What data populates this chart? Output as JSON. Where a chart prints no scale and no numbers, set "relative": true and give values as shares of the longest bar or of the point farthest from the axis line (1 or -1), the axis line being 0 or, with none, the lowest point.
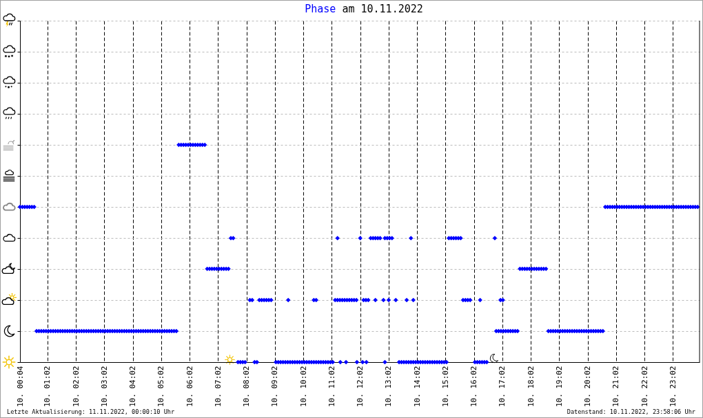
{
  "chart_data": {
    "type": "scatter",
    "title": "Phase am 10.11.2022",
    "annotations": [
      "Letzte Aktualisierung: 11.11.2022, 00:00:10 Uhr",
      "Datenstand: 10.11.2022, 23:58:06 Uhr"
    ],
    "color": "#0000ff",
    "marker": "diamond",
    "grid": true,
    "tick_labels": "x",
    "relative": true,
    "xlim": [
      "2022-11-10T00:04",
      "2022-11-10T23:58"
    ],
    "xticks": [
      {
        "value": "2022-11-10T00:04",
        "label": "10. 00:04"
      },
      {
        "value": "2022-11-10T01:02",
        "label": "10. 01:02"
      },
      {
        "value": "2022-11-10T02:02",
        "label": "10. 02:02"
      },
      {
        "value": "2022-11-10T03:02",
        "label": "10. 03:02"
      },
      {
        "value": "2022-11-10T04:02",
        "label": "10. 04:02"
      },
      {
        "value": "2022-11-10T05:02",
        "label": "10. 05:02"
      },
      {
        "value": "2022-11-10T06:02",
        "label": "10. 06:02"
      },
      {
        "value": "2022-11-10T07:02",
        "label": "10. 07:02"
      },
      {
        "value": "2022-11-10T08:02",
        "label": "10. 08:02"
      },
      {
        "value": "2022-11-10T09:02",
        "label": "10. 09:02"
      },
      {
        "value": "2022-11-10T10:02",
        "label": "10. 10:02"
      },
      {
        "value": "2022-11-10T11:02",
        "label": "10. 11:02"
      },
      {
        "value": "2022-11-10T12:02",
        "label": "10. 12:02"
      },
      {
        "value": "2022-11-10T13:02",
        "label": "10. 13:02"
      },
      {
        "value": "2022-11-10T14:02",
        "label": "10. 14:02"
      },
      {
        "value": "2022-11-10T15:02",
        "label": "10. 15:02"
      },
      {
        "value": "2022-11-10T16:02",
        "label": "10. 16:02"
      },
      {
        "value": "2022-11-10T17:02",
        "label": "10. 17:02"
      },
      {
        "value": "2022-11-10T18:02",
        "label": "10. 18:02"
      },
      {
        "value": "2022-11-10T19:02",
        "label": "10. 19:02"
      },
      {
        "value": "2022-11-10T20:02",
        "label": "10. 20:02"
      },
      {
        "value": "2022-11-10T21:02",
        "label": "10. 21:02"
      },
      {
        "value": "2022-11-10T22:02",
        "label": "10. 22:02"
      },
      {
        "value": "2022-11-10T23:02",
        "label": "10. 23:02"
      }
    ],
    "x": [
      "2022-11-10T00:04",
      "2022-11-10T00:09",
      "2022-11-10T00:14",
      "2022-11-10T00:19",
      "2022-11-10T00:24",
      "2022-11-10T00:29",
      "2022-11-10T00:34",
      "2022-11-10T00:39",
      "2022-11-10T00:44",
      "2022-11-10T00:49",
      "2022-11-10T00:54",
      "2022-11-10T00:59",
      "2022-11-10T01:04",
      "2022-11-10T01:09",
      "2022-11-10T01:14",
      "2022-11-10T01:19",
      "2022-11-10T01:24",
      "2022-11-10T01:29",
      "2022-11-10T01:34",
      "2022-11-10T01:39",
      "2022-11-10T01:44",
      "2022-11-10T01:49",
      "2022-11-10T01:54",
      "2022-11-10T01:59",
      "2022-11-10T02:04",
      "2022-11-10T02:09",
      "2022-11-10T02:14",
      "2022-11-10T02:19",
      "2022-11-10T02:24",
      "2022-11-10T02:29",
      "2022-11-10T02:34",
      "2022-11-10T02:39",
      "2022-11-10T02:44",
      "2022-11-10T02:49",
      "2022-11-10T02:54",
      "2022-11-10T02:59",
      "2022-11-10T03:04",
      "2022-11-10T03:09",
      "2022-11-10T03:14",
      "2022-11-10T03:19",
      "2022-11-10T03:24",
      "2022-11-10T03:29",
      "2022-11-10T03:34",
      "2022-11-10T03:39",
      "2022-11-10T03:44",
      "2022-11-10T03:49",
      "2022-11-10T03:54",
      "2022-11-10T03:59",
      "2022-11-10T04:04",
      "2022-11-10T04:09",
      "2022-11-10T04:14",
      "2022-11-10T04:19",
      "2022-11-10T04:24",
      "2022-11-10T04:29",
      "2022-11-10T04:34",
      "2022-11-10T04:39",
      "2022-11-10T04:44",
      "2022-11-10T04:49",
      "2022-11-10T04:54",
      "2022-11-10T04:59",
      "2022-11-10T05:04",
      "2022-11-10T05:09",
      "2022-11-10T05:14",
      "2022-11-10T05:19",
      "2022-11-10T05:24",
      "2022-11-10T05:29",
      "2022-11-10T05:34",
      "2022-11-10T05:39",
      "2022-11-10T05:44",
      "2022-11-10T05:49",
      "2022-11-10T05:54",
      "2022-11-10T05:59",
      "2022-11-10T06:04",
      "2022-11-10T06:09",
      "2022-11-10T06:14",
      "2022-11-10T06:19",
      "2022-11-10T06:24",
      "2022-11-10T06:29",
      "2022-11-10T06:34",
      "2022-11-10T06:39",
      "2022-11-10T06:44",
      "2022-11-10T06:49",
      "2022-11-10T06:54",
      "2022-11-10T06:59",
      "2022-11-10T07:04",
      "2022-11-10T07:09",
      "2022-11-10T07:14",
      "2022-11-10T07:19",
      "2022-11-10T07:24",
      "2022-11-10T07:29",
      "2022-11-10T07:34",
      "2022-11-10T07:44",
      "2022-11-10T07:49",
      "2022-11-10T07:54",
      "2022-11-10T07:59",
      "2022-11-10T08:09",
      "2022-11-10T08:14",
      "2022-11-10T08:19",
      "2022-11-10T08:24",
      "2022-11-10T08:29",
      "2022-11-10T08:34",
      "2022-11-10T08:39",
      "2022-11-10T08:44",
      "2022-11-10T08:49",
      "2022-11-10T08:54",
      "2022-11-10T09:04",
      "2022-11-10T09:09",
      "2022-11-10T09:14",
      "2022-11-10T09:19",
      "2022-11-10T09:24",
      "2022-11-10T09:29",
      "2022-11-10T09:34",
      "2022-11-10T09:39",
      "2022-11-10T09:44",
      "2022-11-10T09:49",
      "2022-11-10T09:54",
      "2022-11-10T09:59",
      "2022-11-10T10:04",
      "2022-11-10T10:09",
      "2022-11-10T10:14",
      "2022-11-10T10:19",
      "2022-11-10T10:24",
      "2022-11-10T10:29",
      "2022-11-10T10:34",
      "2022-11-10T10:39",
      "2022-11-10T10:44",
      "2022-11-10T10:49",
      "2022-11-10T10:54",
      "2022-11-10T10:59",
      "2022-11-10T11:04",
      "2022-11-10T09:30",
      "2022-11-10T10:24",
      "2022-11-10T10:29",
      "2022-11-10T11:09",
      "2022-11-10T11:14",
      "2022-11-10T11:19",
      "2022-11-10T11:24",
      "2022-11-10T11:29",
      "2022-11-10T11:34",
      "2022-11-10T11:39",
      "2022-11-10T11:44",
      "2022-11-10T11:49",
      "2022-11-10T11:54",
      "2022-11-10T11:20",
      "2022-11-10T11:32",
      "2022-11-10T11:55",
      "2022-11-10T12:07",
      "2022-11-10T12:15",
      "2022-11-10T12:54",
      "2022-11-10T11:14",
      "2022-11-10T12:02",
      "2022-11-10T12:09",
      "2022-11-10T12:14",
      "2022-11-10T12:19",
      "2022-11-10T12:34",
      "2022-11-10T12:24",
      "2022-11-10T12:29",
      "2022-11-10T12:34",
      "2022-11-10T12:39",
      "2022-11-10T12:44",
      "2022-11-10T12:54",
      "2022-11-10T12:59",
      "2022-11-10T13:04",
      "2022-11-10T13:09",
      "2022-11-10T12:51",
      "2022-11-10T13:02",
      "2022-11-10T13:17",
      "2022-11-10T13:40",
      "2022-11-10T13:54",
      "2022-11-10T13:49",
      "2022-11-10T13:24",
      "2022-11-10T13:29",
      "2022-11-10T13:34",
      "2022-11-10T13:39",
      "2022-11-10T13:44",
      "2022-11-10T13:49",
      "2022-11-10T13:54",
      "2022-11-10T13:59",
      "2022-11-10T14:04",
      "2022-11-10T14:09",
      "2022-11-10T14:14",
      "2022-11-10T14:19",
      "2022-11-10T14:24",
      "2022-11-10T14:29",
      "2022-11-10T14:34",
      "2022-11-10T14:39",
      "2022-11-10T14:44",
      "2022-11-10T14:49",
      "2022-11-10T14:54",
      "2022-11-10T14:59",
      "2022-11-10T15:04",
      "2022-11-10T15:09",
      "2022-11-10T15:14",
      "2022-11-10T15:19",
      "2022-11-10T15:24",
      "2022-11-10T15:29",
      "2022-11-10T15:34",
      "2022-11-10T15:39",
      "2022-11-10T15:44",
      "2022-11-10T15:49",
      "2022-11-10T15:54",
      "2022-11-10T16:04",
      "2022-11-10T16:09",
      "2022-11-10T16:14",
      "2022-11-10T16:19",
      "2022-11-10T16:24",
      "2022-11-10T16:29",
      "2022-11-10T16:15",
      "2022-11-10T16:58",
      "2022-11-10T17:03",
      "2022-11-10T16:46",
      "2022-11-10T16:49",
      "2022-11-10T16:54",
      "2022-11-10T16:59",
      "2022-11-10T17:04",
      "2022-11-10T17:09",
      "2022-11-10T17:14",
      "2022-11-10T17:19",
      "2022-11-10T17:24",
      "2022-11-10T17:29",
      "2022-11-10T17:34",
      "2022-11-10T17:39",
      "2022-11-10T17:44",
      "2022-11-10T17:49",
      "2022-11-10T17:54",
      "2022-11-10T17:59",
      "2022-11-10T18:04",
      "2022-11-10T18:09",
      "2022-11-10T18:14",
      "2022-11-10T18:19",
      "2022-11-10T18:24",
      "2022-11-10T18:29",
      "2022-11-10T18:34",
      "2022-11-10T18:39",
      "2022-11-10T18:44",
      "2022-11-10T18:49",
      "2022-11-10T18:54",
      "2022-11-10T18:59",
      "2022-11-10T19:04",
      "2022-11-10T19:09",
      "2022-11-10T19:14",
      "2022-11-10T19:19",
      "2022-11-10T19:24",
      "2022-11-10T19:29",
      "2022-11-10T19:34",
      "2022-11-10T19:39",
      "2022-11-10T19:44",
      "2022-11-10T19:49",
      "2022-11-10T19:54",
      "2022-11-10T19:59",
      "2022-11-10T20:04",
      "2022-11-10T20:09",
      "2022-11-10T20:14",
      "2022-11-10T20:19",
      "2022-11-10T20:24",
      "2022-11-10T20:29",
      "2022-11-10T20:34",
      "2022-11-10T20:39",
      "2022-11-10T20:44",
      "2022-11-10T20:49",
      "2022-11-10T20:54",
      "2022-11-10T20:59",
      "2022-11-10T21:04",
      "2022-11-10T21:09",
      "2022-11-10T21:14",
      "2022-11-10T21:19",
      "2022-11-10T21:24",
      "2022-11-10T21:29",
      "2022-11-10T21:34",
      "2022-11-10T21:39",
      "2022-11-10T21:44",
      "2022-11-10T21:49",
      "2022-11-10T21:54",
      "2022-11-10T21:59",
      "2022-11-10T22:04",
      "2022-11-10T22:09",
      "2022-11-10T22:14",
      "2022-11-10T22:19",
      "2022-11-10T22:24",
      "2022-11-10T22:29",
      "2022-11-10T22:34",
      "2022-11-10T22:39",
      "2022-11-10T22:44",
      "2022-11-10T22:49",
      "2022-11-10T22:54",
      "2022-11-10T22:59",
      "2022-11-10T23:04",
      "2022-11-10T23:09",
      "2022-11-10T23:14",
      "2022-11-10T23:19",
      "2022-11-10T23:24",
      "2022-11-10T23:29",
      "2022-11-10T23:34",
      "2022-11-10T23:39",
      "2022-11-10T23:44",
      "2022-11-10T23:49",
      "2022-11-10T23:54"
    ],
    "values": [
      0.714,
      0.714,
      0.714,
      0.714,
      0.714,
      0.714,
      0.714,
      0.143,
      0.143,
      0.143,
      0.143,
      0.143,
      0.143,
      0.143,
      0.143,
      0.143,
      0.143,
      0.143,
      0.143,
      0.143,
      0.143,
      0.143,
      0.143,
      0.143,
      0.143,
      0.143,
      0.143,
      0.143,
      0.143,
      0.143,
      0.143,
      0.143,
      0.143,
      0.143,
      0.143,
      0.143,
      0.143,
      0.143,
      0.143,
      0.143,
      0.143,
      0.143,
      0.143,
      0.143,
      0.143,
      0.143,
      0.143,
      0.143,
      0.143,
      0.143,
      0.143,
      0.143,
      0.143,
      0.143,
      0.143,
      0.143,
      0.143,
      0.143,
      0.143,
      0.143,
      0.143,
      0.143,
      0.143,
      0.143,
      0.143,
      0.143,
      0.143,
      1,
      1,
      1,
      1,
      1,
      1,
      1,
      1,
      1,
      1,
      1,
      1,
      0.429,
      0.429,
      0.429,
      0.429,
      0.429,
      0.429,
      0.429,
      0.429,
      0.429,
      0.429,
      0.571,
      0.571,
      0,
      0,
      0,
      0,
      0.286,
      0.286,
      0,
      0,
      0.286,
      0.286,
      0.286,
      0.286,
      0.286,
      0.286,
      0,
      0,
      0,
      0,
      0,
      0,
      0,
      0,
      0,
      0,
      0,
      0,
      0,
      0,
      0,
      0,
      0,
      0,
      0,
      0,
      0,
      0,
      0,
      0,
      0,
      0.286,
      0.286,
      0.286,
      0.286,
      0.286,
      0.286,
      0.286,
      0.286,
      0.286,
      0.286,
      0.286,
      0.286,
      0.286,
      0,
      0,
      0,
      0,
      0,
      0,
      0.571,
      0.571,
      0.286,
      0.286,
      0.286,
      0.286,
      0.571,
      0.571,
      0.571,
      0.571,
      0.571,
      0.571,
      0.571,
      0.571,
      0.571,
      0.286,
      0.286,
      0.286,
      0.286,
      0.286,
      0.571,
      0,
      0,
      0,
      0,
      0,
      0,
      0,
      0,
      0,
      0,
      0,
      0,
      0,
      0,
      0,
      0,
      0,
      0,
      0,
      0,
      0,
      0.571,
      0.571,
      0.571,
      0.571,
      0.571,
      0.571,
      0.286,
      0.286,
      0.286,
      0.286,
      0,
      0,
      0,
      0,
      0,
      0,
      0.286,
      0.286,
      0.286,
      0.571,
      0.143,
      0.143,
      0.143,
      0.143,
      0.143,
      0.143,
      0.143,
      0.143,
      0.143,
      0.143,
      0.429,
      0.429,
      0.429,
      0.429,
      0.429,
      0.429,
      0.429,
      0.429,
      0.429,
      0.429,
      0.429,
      0.429,
      0.143,
      0.143,
      0.143,
      0.143,
      0.143,
      0.143,
      0.143,
      0.143,
      0.143,
      0.143,
      0.143,
      0.143,
      0.143,
      0.143,
      0.143,
      0.143,
      0.143,
      0.143,
      0.143,
      0.143,
      0.143,
      0.143,
      0.143,
      0.143,
      0.714,
      0.714,
      0.714,
      0.714,
      0.714,
      0.714,
      0.714,
      0.714,
      0.714,
      0.714,
      0.714,
      0.714,
      0.714,
      0.714,
      0.714,
      0.714,
      0.714,
      0.714,
      0.714,
      0.714,
      0.714,
      0.714,
      0.714,
      0.714,
      0.714,
      0.714,
      0.714,
      0.714,
      0.714,
      0.714,
      0.714,
      0.714,
      0.714,
      0.714,
      0.714,
      0.714,
      0.714,
      0.714,
      0.714,
      0.714
    ]
  }
}
